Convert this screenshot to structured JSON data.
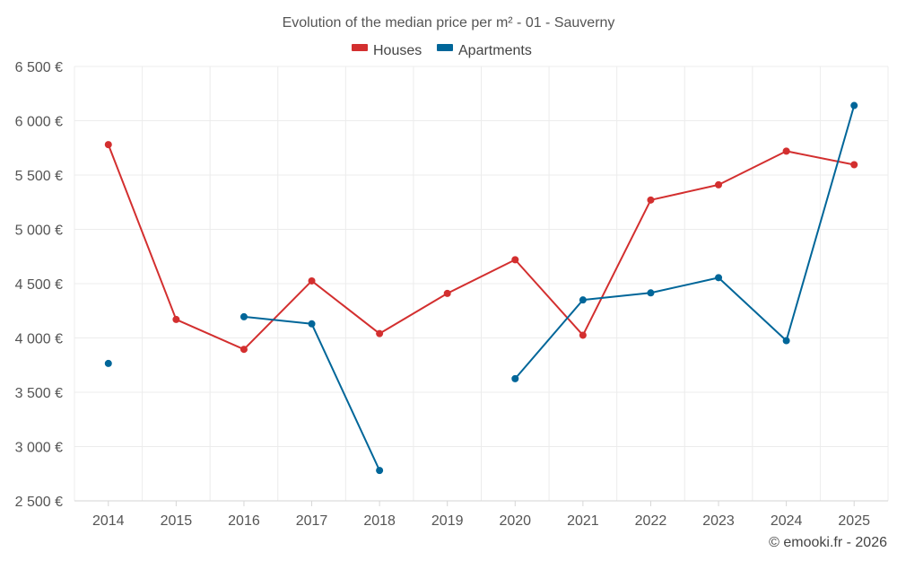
{
  "colors": {
    "houses": "#d32f2f",
    "apartments": "#006699",
    "grid": "#ececec",
    "text": "#555555"
  },
  "credit": "© emooki.fr - 2026",
  "chart_data": {
    "type": "line",
    "title": "Evolution of the median price per m² - 01 - Sauverny",
    "xlabel": "",
    "ylabel": "",
    "categories": [
      "2014",
      "2015",
      "2016",
      "2017",
      "2018",
      "2019",
      "2020",
      "2021",
      "2022",
      "2023",
      "2024",
      "2025"
    ],
    "ylim": [
      2500,
      6500
    ],
    "yticks": [
      2500,
      3000,
      3500,
      4000,
      4500,
      5000,
      5500,
      6000,
      6500
    ],
    "ytick_labels": [
      "2 500 €",
      "3 000 €",
      "3 500 €",
      "4 000 €",
      "4 500 €",
      "5 000 €",
      "5 500 €",
      "6 000 €",
      "6 500 €"
    ],
    "legend_position": "top-center",
    "series": [
      {
        "name": "Houses",
        "key": "houses",
        "values": [
          5780,
          4170,
          3895,
          4525,
          4040,
          4410,
          4720,
          4025,
          5270,
          5410,
          5720,
          5595
        ]
      },
      {
        "name": "Apartments",
        "key": "apartments",
        "values": [
          3765,
          null,
          4195,
          4130,
          2780,
          null,
          3625,
          4350,
          4415,
          4555,
          3975,
          6140
        ]
      }
    ]
  }
}
